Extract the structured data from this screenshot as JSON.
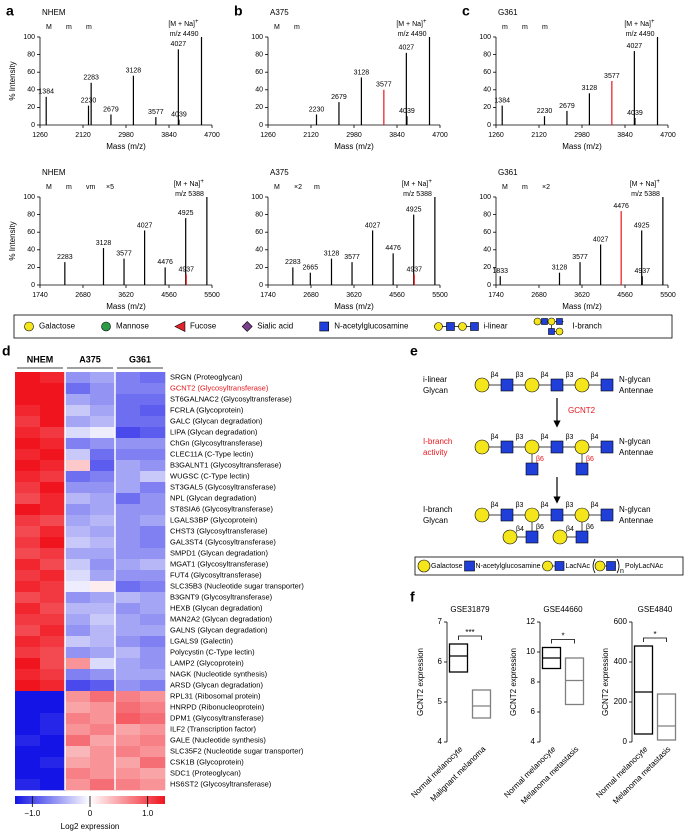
{
  "panel_labels": [
    "a",
    "b",
    "c",
    "d",
    "e",
    "f"
  ],
  "chart_data": [
    {
      "type": "spectrum",
      "title": "NHEM",
      "xlabel": "Mass (m/z)",
      "ylabel": "% Intensity",
      "xlim": [
        1260,
        4700
      ],
      "ylim": [
        0,
        100
      ],
      "xticks": [
        1260,
        2120,
        2980,
        3840,
        4700
      ],
      "yticks": [
        0,
        20,
        40,
        60,
        80,
        100
      ],
      "glycan_labels": [
        "M",
        "m",
        "m"
      ],
      "ion": {
        "label": "[M + Na]",
        "charge": "+",
        "mz_label": "m/z 4490",
        "x": 4490,
        "value": 100
      },
      "series": [
        {
          "x": [
            1384,
            2230,
            2283,
            2679,
            3128,
            3577,
            4027,
            4039
          ],
          "values": [
            32,
            22,
            48,
            12,
            56,
            9,
            86,
            6
          ],
          "colors": [
            "#000000",
            "#000000",
            "#000000",
            "#000000",
            "#000000",
            "#000000",
            "#000000",
            "#000000"
          ]
        }
      ]
    },
    {
      "type": "spectrum",
      "title": "A375",
      "xlabel": "Mass (m/z)",
      "xlim": [
        1260,
        4700
      ],
      "ylim": [
        0,
        100
      ],
      "xticks": [
        1260,
        2120,
        2980,
        3840,
        4700
      ],
      "yticks": [
        0,
        20,
        40,
        60,
        80,
        100
      ],
      "glycan_labels": [
        "M",
        "m"
      ],
      "ion": {
        "label": "[M + Na]",
        "charge": "+",
        "mz_label": "m/z 4490",
        "x": 4490,
        "value": 100
      },
      "series": [
        {
          "x": [
            2230,
            2679,
            3128,
            3577,
            4027,
            4039
          ],
          "values": [
            12,
            26,
            54,
            40,
            82,
            10
          ],
          "colors": [
            "#000000",
            "#000000",
            "#000000",
            "#e8161c",
            "#000000",
            "#000000"
          ]
        }
      ]
    },
    {
      "type": "spectrum",
      "title": "G361",
      "xlabel": "Mass (m/z)",
      "xlim": [
        1260,
        4700
      ],
      "ylim": [
        0,
        100
      ],
      "xticks": [
        1260,
        2120,
        2980,
        3840,
        4700
      ],
      "yticks": [
        0,
        20,
        40,
        60,
        80,
        100
      ],
      "glycan_labels": [
        "m",
        "m",
        "m"
      ],
      "ion": {
        "label": "[M + Na]",
        "charge": "+",
        "mz_label": "m/z 4490",
        "x": 4490,
        "value": 100
      },
      "series": [
        {
          "x": [
            1384,
            2230,
            2679,
            3128,
            3577,
            4027,
            4039
          ],
          "values": [
            22,
            10,
            16,
            36,
            50,
            84,
            8
          ],
          "colors": [
            "#000000",
            "#000000",
            "#000000",
            "#000000",
            "#e8161c",
            "#000000",
            "#000000"
          ]
        }
      ]
    },
    {
      "type": "spectrum",
      "title": "NHEM",
      "xlabel": "Mass (m/z)",
      "ylabel": "% Intensity",
      "xlim": [
        1740,
        5500
      ],
      "ylim": [
        0,
        100
      ],
      "xticks": [
        1740,
        2680,
        3620,
        4560,
        5500
      ],
      "yticks": [
        0,
        20,
        40,
        60,
        80,
        100
      ],
      "glycan_labels": [
        "M",
        "m",
        "vm",
        "×5"
      ],
      "ion": {
        "label": "[M + Na]",
        "charge": "+",
        "mz_label": "m/z 5388",
        "x": 5388,
        "value": 100
      },
      "series": [
        {
          "x": [
            2283,
            3128,
            3577,
            4027,
            4476,
            4925,
            4937
          ],
          "values": [
            26,
            42,
            30,
            62,
            20,
            76,
            12
          ],
          "colors": [
            "#000000",
            "#000000",
            "#000000",
            "#000000",
            "#000000",
            "#000000",
            "#e8161c"
          ]
        }
      ]
    },
    {
      "type": "spectrum",
      "title": "A375",
      "xlabel": "Mass (m/z)",
      "xlim": [
        1740,
        5500
      ],
      "ylim": [
        0,
        100
      ],
      "xticks": [
        1740,
        2680,
        3620,
        4560,
        5500
      ],
      "yticks": [
        0,
        20,
        40,
        60,
        80,
        100
      ],
      "glycan_labels": [
        "M",
        "×2",
        "m"
      ],
      "ion": {
        "label": "[M + Na]",
        "charge": "+",
        "mz_label": "m/z 5388",
        "x": 5388,
        "value": 100
      },
      "series": [
        {
          "x": [
            2283,
            2665,
            3128,
            3577,
            4027,
            4476,
            4925,
            4937
          ],
          "values": [
            20,
            14,
            30,
            26,
            62,
            36,
            80,
            12
          ],
          "colors": [
            "#000000",
            "#000000",
            "#000000",
            "#000000",
            "#000000",
            "#000000",
            "#000000",
            "#e8161c"
          ]
        }
      ]
    },
    {
      "type": "spectrum",
      "title": "G361",
      "xlabel": "Mass (m/z)",
      "xlim": [
        1740,
        5500
      ],
      "ylim": [
        0,
        100
      ],
      "xticks": [
        1740,
        2680,
        3620,
        4560,
        5500
      ],
      "yticks": [
        0,
        20,
        40,
        60,
        80,
        100
      ],
      "glycan_labels": [
        "M",
        "m",
        "×2"
      ],
      "ion": {
        "label": "[M + Na]",
        "charge": "+",
        "mz_label": "m/z 5388",
        "x": 5388,
        "value": 100
      },
      "series": [
        {
          "x": [
            1833,
            3128,
            3577,
            4027,
            4476,
            4925,
            4937
          ],
          "values": [
            10,
            14,
            26,
            46,
            84,
            62,
            10
          ],
          "colors": [
            "#000000",
            "#000000",
            "#000000",
            "#000000",
            "#e8161c",
            "#000000",
            "#000000"
          ]
        }
      ]
    },
    {
      "type": "heatmap",
      "groups": [
        "NHEM",
        "A375",
        "G361"
      ],
      "rows": [
        "SRGN (Proteoglycan)",
        "GCNT2 (Glycosyltransferase)",
        "ST6GALNAC2 (Glycosyltransferase)",
        "FCRLA (Glycoprotein)",
        "GALC (Glycan degradation)",
        "LIPA (Glycan degradation)",
        "ChGn (Glycosyltransferase)",
        "CLEC11A (C-Type lectin)",
        "B3GALNT1 (Glycosyltransferase)",
        "WUGSC (C-Type lectin)",
        "ST3GAL5 (Glycosyltransferase)",
        "NPL (Glycan degradation)",
        "ST8SIA6 (Glycosyltransferase)",
        "LGALS3BP (Glycoprotein)",
        "CHST3 (Glycosyltransferase)",
        "GAL3ST4 (Glycosyltransferase)",
        "SMPD1 (Glycan degradation)",
        "MGAT1 (Glycosyltransferase)",
        "FUT4 (Glycosyltransferase)",
        "SLC35B3 (Nucleotide sugar transporter)",
        "B3GNT9 (Glycosyltransferase)",
        "HEXB (Glycan degradation)",
        "MAN2A2 (Glycan degradation)",
        "GALNS (Glycan degradation)",
        "LGALS9 (Galectin)",
        "Polycystin (C-Type lectin)",
        "LAMP2 (Glycoprotein)",
        "NAGK (Nucleotide synthesis)",
        "ARSD (Glycan degradation)",
        "RPL31 (Ribosomal protein)",
        "HNRPD (Ribonucleoprotein)",
        "DPM1 (Glycosyltransferase)",
        "ILF2 (Transcription factor)",
        "GALE (Nucleotide synthesis)",
        "SLC35F2 (Nucleotide sugar transporter)",
        "CSK1B (Glycoprotein)",
        "SDC1 (Proteoglycan)",
        "HS6ST2 (Glycosyltransferase)"
      ],
      "values": [
        [
          1.4,
          1.2,
          -0.6,
          -0.5,
          -0.7,
          -0.8
        ],
        [
          1.5,
          1.3,
          -0.8,
          -0.6,
          -0.7,
          -0.7
        ],
        [
          1.3,
          1.4,
          -0.5,
          -0.6,
          -0.8,
          -0.8
        ],
        [
          1.2,
          1.3,
          -0.3,
          -0.5,
          -0.8,
          -0.9
        ],
        [
          1.1,
          1.4,
          -0.5,
          -0.4,
          -0.8,
          -0.8
        ],
        [
          1.2,
          1.1,
          -0.2,
          -0.1,
          -1.0,
          -0.9
        ],
        [
          1.3,
          1.2,
          -0.7,
          -0.6,
          -0.6,
          -0.6
        ],
        [
          1.2,
          1.3,
          -0.3,
          -0.8,
          -0.7,
          -0.7
        ],
        [
          1.3,
          1.2,
          0.3,
          -0.9,
          -0.5,
          -0.6
        ],
        [
          1.2,
          1.1,
          -0.8,
          -0.7,
          -0.5,
          -0.3
        ],
        [
          1.1,
          1.3,
          -0.6,
          -0.6,
          -0.5,
          -0.7
        ],
        [
          1.0,
          1.2,
          -0.4,
          -0.5,
          -0.8,
          -0.6
        ],
        [
          1.4,
          1.2,
          -0.6,
          -0.5,
          -0.6,
          -0.6
        ],
        [
          1.1,
          1.0,
          -0.5,
          -0.4,
          -0.6,
          -0.5
        ],
        [
          1.0,
          1.2,
          -0.4,
          -0.5,
          -0.6,
          -0.7
        ],
        [
          1.1,
          1.3,
          -0.3,
          -0.4,
          -0.6,
          -0.7
        ],
        [
          1.0,
          1.1,
          -0.5,
          -0.5,
          -0.6,
          -0.6
        ],
        [
          1.2,
          1.0,
          -0.3,
          -0.6,
          -0.5,
          -0.4
        ],
        [
          1.1,
          1.2,
          -0.2,
          -0.5,
          -0.6,
          -0.6
        ],
        [
          1.2,
          1.1,
          -0.1,
          0.1,
          -0.8,
          -0.7
        ],
        [
          1.0,
          1.1,
          -0.6,
          -0.5,
          -0.4,
          -0.5
        ],
        [
          1.2,
          1.0,
          -0.4,
          -0.4,
          -0.6,
          -0.5
        ],
        [
          1.1,
          1.1,
          -0.5,
          -0.3,
          -0.5,
          -0.6
        ],
        [
          1.0,
          1.2,
          -0.6,
          -0.4,
          -0.5,
          -0.5
        ],
        [
          1.2,
          1.1,
          -0.3,
          -0.4,
          -0.6,
          -0.7
        ],
        [
          1.1,
          1.0,
          -0.6,
          -0.5,
          -0.4,
          -0.6
        ],
        [
          1.3,
          1.0,
          0.6,
          -0.2,
          -0.5,
          -0.6
        ],
        [
          1.2,
          1.1,
          -0.7,
          -0.6,
          -0.5,
          -0.5
        ],
        [
          1.3,
          1.2,
          -1.0,
          -0.9,
          -0.6,
          -0.7
        ],
        [
          -1.4,
          -1.3,
          0.6,
          0.8,
          0.7,
          0.6
        ],
        [
          -1.3,
          -1.4,
          0.5,
          0.6,
          0.8,
          0.7
        ],
        [
          -1.4,
          -1.2,
          0.7,
          0.6,
          0.9,
          0.8
        ],
        [
          -1.3,
          -1.2,
          0.6,
          0.7,
          0.5,
          0.6
        ],
        [
          -1.2,
          -1.4,
          0.8,
          0.5,
          0.6,
          0.7
        ],
        [
          -1.3,
          -1.3,
          0.4,
          0.6,
          0.7,
          0.6
        ],
        [
          -1.4,
          -1.2,
          0.5,
          0.6,
          0.5,
          0.8
        ],
        [
          -1.3,
          -1.4,
          0.7,
          0.6,
          0.6,
          0.5
        ],
        [
          -1.2,
          -1.3,
          0.6,
          0.8,
          0.7,
          0.6
        ]
      ],
      "colors": [
        "#1414e6",
        "#ffffff",
        "#f0141e"
      ],
      "clim": [
        -1.3,
        1.3
      ],
      "colorbar_ticks": [
        {
          "value": -1,
          "label": "−1.0"
        },
        0,
        {
          "value": 1,
          "label": "1.0"
        }
      ],
      "colorbar_label": "Log2 expression",
      "highlight_row": 1,
      "highlight_color": "#e8161c"
    },
    {
      "type": "box",
      "title": "GSE31879",
      "ylabel": "GCNT2 expression",
      "categories": [
        "Normal melanocyte",
        "Malignant melanoma"
      ],
      "low": [
        5.75,
        4.6
      ],
      "median": [
        6.15,
        4.9
      ],
      "high": [
        6.45,
        5.3
      ],
      "colors": [
        "#000000",
        "#808080"
      ],
      "ylim": [
        4,
        7
      ],
      "yticks": [
        4,
        5,
        6,
        7
      ],
      "significance": "***"
    },
    {
      "type": "box",
      "title": "GSE44660",
      "ylabel": "GCNT2 expression",
      "categories": [
        "Normal melanocyte",
        "Melanoma metastasis"
      ],
      "low": [
        8.9,
        6.5
      ],
      "median": [
        9.6,
        8.1
      ],
      "high": [
        10.3,
        9.6
      ],
      "colors": [
        "#000000",
        "#808080"
      ],
      "ylim": [
        4,
        12
      ],
      "yticks": [
        4,
        6,
        8,
        10,
        12
      ],
      "significance": "*"
    },
    {
      "type": "box",
      "title": "GSE4840",
      "ylabel": "GCNT2 expression",
      "categories": [
        "Normal melanocyte",
        "Melanoma metastasis"
      ],
      "low": [
        40,
        10
      ],
      "median": [
        250,
        80
      ],
      "high": [
        480,
        240
      ],
      "colors": [
        "#000000",
        "#808080"
      ],
      "ylim": [
        0,
        600
      ],
      "yticks": [
        0,
        200,
        400,
        600
      ],
      "significance": "*"
    }
  ],
  "glycan_legend": [
    {
      "label": "Galactose",
      "shape": "circle",
      "color": "#f5e51b"
    },
    {
      "label": "Mannose",
      "shape": "circle",
      "color": "#2e9b46"
    },
    {
      "label": "Fucose",
      "shape": "triangle",
      "color": "#e3232c"
    },
    {
      "label": "Sialic acid",
      "shape": "diamond",
      "color": "#7b3f8c"
    },
    {
      "label": "N-acetylglucosamine",
      "shape": "square",
      "color": "#1f3fd8"
    },
    {
      "label": "i-linear",
      "shape": "chain"
    },
    {
      "label": "I-branch",
      "shape": "branch"
    }
  ],
  "pathway": {
    "rows": [
      {
        "label": [
          "i-linear",
          "Glycan"
        ],
        "end": [
          "N-glycan",
          "Antennae"
        ],
        "links": [
          "β4",
          "β3",
          "β4",
          "β3",
          "β4"
        ]
      },
      {
        "label": [
          "I-branch",
          "activity"
        ],
        "end": [
          "N-glycan",
          "Antennae"
        ],
        "links": [
          "β4",
          "β3",
          "β4",
          "β3",
          "β4"
        ],
        "branch_links": [
          "β6",
          "β6"
        ]
      },
      {
        "label": [
          "I-branch",
          "Glycan"
        ],
        "end": [
          "N-glycan",
          "Antennae"
        ],
        "links": [
          "β4",
          "β3",
          "β4",
          "β3",
          "β4"
        ],
        "branch_links": [
          "β6",
          "β6"
        ],
        "branch_gal_links": [
          "β4",
          "β4"
        ]
      }
    ],
    "enzyme": "GCNT2",
    "legend": [
      "Galactose",
      "N-acetylglucosamine",
      "LacNAc",
      "PolyLacNAc"
    ],
    "legend_subscript": "n"
  }
}
